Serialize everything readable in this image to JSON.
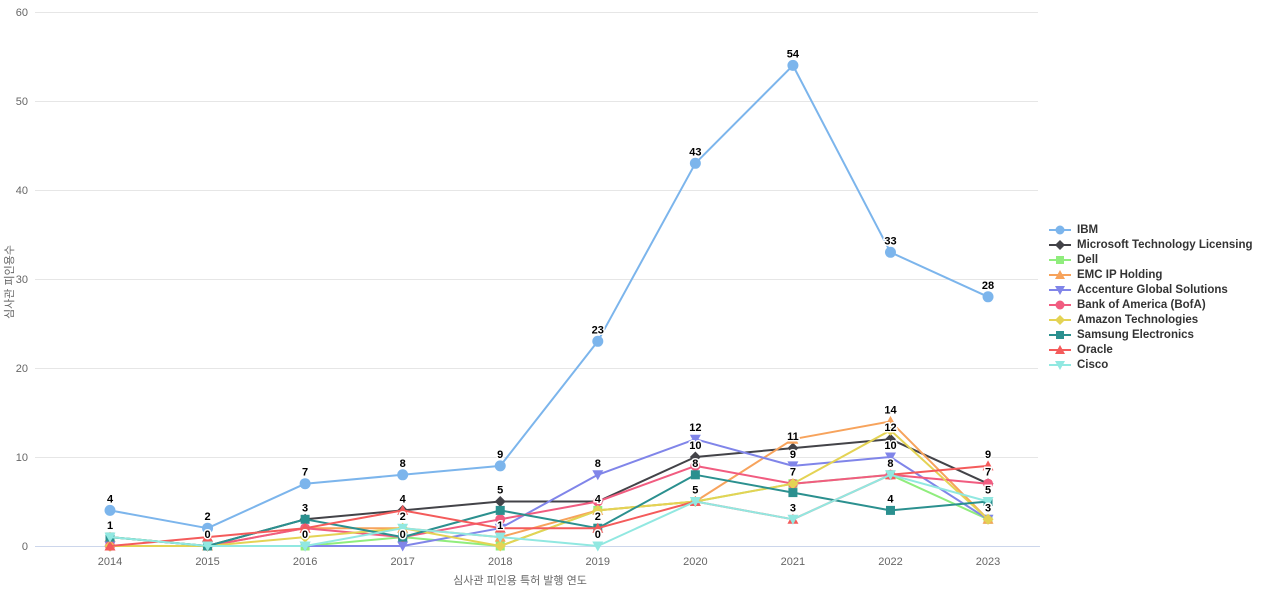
{
  "chart_data": {
    "type": "line",
    "x": [
      2014,
      2015,
      2016,
      2017,
      2018,
      2019,
      2020,
      2021,
      2022,
      2023
    ],
    "xlabel": "심사관 피인용 특허 발행 연도",
    "ylabel": "심사관 피인용수",
    "ylim": [
      0,
      60
    ],
    "y_ticks": [
      0,
      10,
      20,
      30,
      40,
      50,
      60
    ],
    "grid": true,
    "legend_position": "right",
    "series": [
      {
        "name": "IBM",
        "color": "#7cb5ec",
        "values": [
          4,
          2,
          7,
          8,
          9,
          23,
          43,
          54,
          33,
          28
        ],
        "visible_labels": {
          "2014": 4,
          "2015": 2,
          "2016": 7,
          "2017": 8,
          "2018": 9,
          "2019": 23,
          "2020": 43,
          "2021": 54,
          "2022": 33,
          "2023": 28
        }
      },
      {
        "name": "Microsoft Technology Licensing",
        "color": "#434348",
        "values": [
          0,
          0,
          3,
          4,
          5,
          5,
          10,
          11,
          12,
          7
        ],
        "visible_labels": {
          "2018": 5,
          "2020": 10,
          "2021": 11,
          "2022": 12
        }
      },
      {
        "name": "Dell",
        "color": "#90ed7d",
        "values": [
          1,
          0,
          0,
          1,
          0,
          4,
          5,
          7,
          8,
          3
        ],
        "visible_labels": {
          "2014": 1
        }
      },
      {
        "name": "EMC IP Holding",
        "color": "#f7a35c",
        "values": [
          1,
          0,
          2,
          2,
          1,
          4,
          5,
          12,
          14,
          3
        ],
        "visible_labels": {
          "2022": 14
        }
      },
      {
        "name": "Accenture Global Solutions",
        "color": "#8085e9",
        "values": [
          0,
          0,
          0,
          0,
          2,
          8,
          12,
          9,
          10,
          3
        ],
        "visible_labels": {
          "2017": 0,
          "2019": 8,
          "2020": 12,
          "2021": 9,
          "2022": 10,
          "2023": 3
        }
      },
      {
        "name": "Bank of America (BofA)",
        "color": "#f15c80",
        "values": [
          0,
          0,
          2,
          1,
          3,
          5,
          9,
          7,
          8,
          7
        ],
        "visible_labels": {
          "2021": 7,
          "2023": 7
        }
      },
      {
        "name": "Amazon Technologies",
        "color": "#e4d354",
        "values": [
          0,
          0,
          1,
          2,
          0,
          4,
          5,
          7,
          13,
          3
        ],
        "visible_labels": {
          "2019": 4
        }
      },
      {
        "name": "Samsung Electronics",
        "color": "#2b908f",
        "values": [
          1,
          0,
          3,
          1,
          4,
          2,
          8,
          6,
          4,
          5
        ],
        "visible_labels": {
          "2015": 0,
          "2016": 3,
          "2019": 2,
          "2020": 8,
          "2022": 4,
          "2023": 5
        }
      },
      {
        "name": "Oracle",
        "color": "#f45b5b",
        "values": [
          0,
          1,
          2,
          4,
          2,
          2,
          5,
          3,
          8,
          9
        ],
        "visible_labels": {
          "2017": 4,
          "2023": 9
        }
      },
      {
        "name": "Cisco",
        "color": "#91e8e1",
        "values": [
          1,
          0,
          0,
          2,
          1,
          0,
          5,
          3,
          8,
          5
        ],
        "visible_labels": {
          "2016": 0,
          "2017": 2,
          "2018": 1,
          "2019": 0,
          "2020": 5,
          "2021": 3,
          "2022": 8
        }
      }
    ]
  }
}
